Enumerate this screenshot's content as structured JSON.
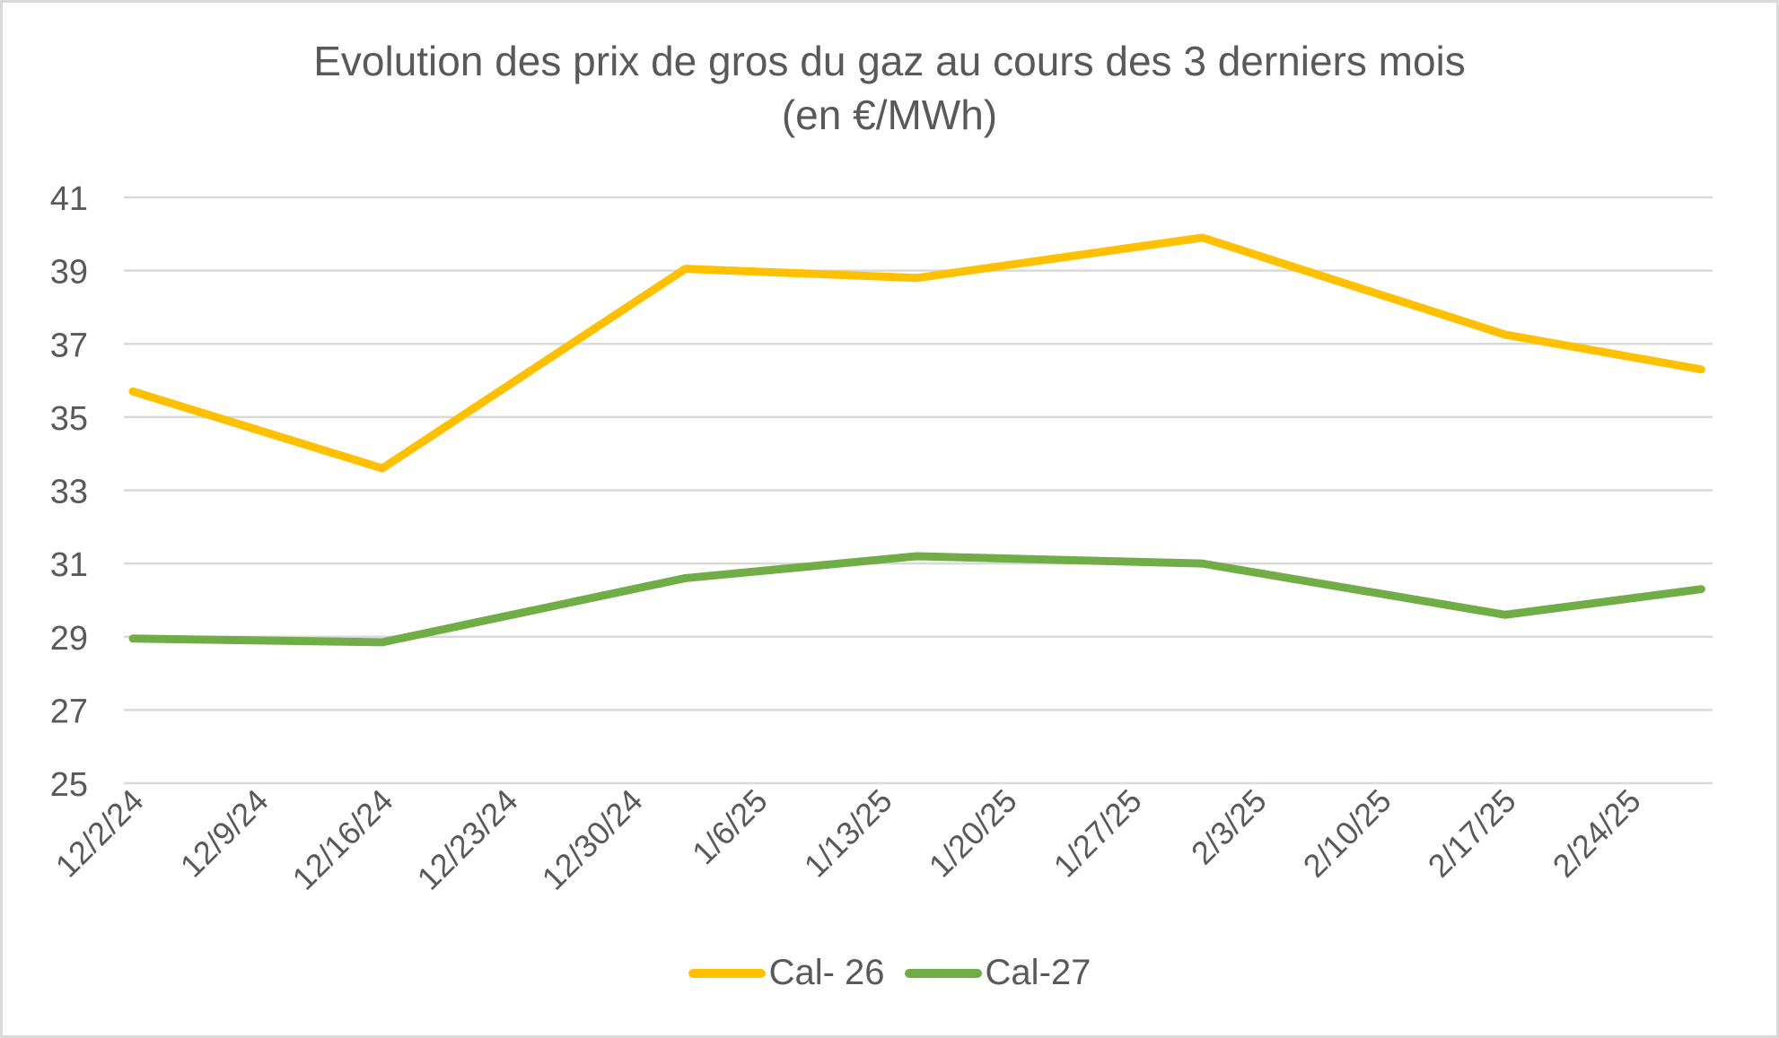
{
  "chart_data": {
    "type": "line",
    "title": "Evolution des prix de gros du gaz au cours des 3 derniers mois",
    "subtitle": "(en €/MWh)",
    "xlabel": "",
    "ylabel": "",
    "ylim": [
      25,
      41
    ],
    "yticks": [
      25,
      27,
      29,
      31,
      33,
      35,
      37,
      39,
      41
    ],
    "x_tick_labels": [
      "12/2/24",
      "12/9/24",
      "12/16/24",
      "12/23/24",
      "12/30/24",
      "1/6/25",
      "1/13/25",
      "1/20/25",
      "1/27/25",
      "2/3/25",
      "2/10/25",
      "2/17/25",
      "2/24/25"
    ],
    "x": [
      "12/2/24",
      "12/16/24",
      "1/2/25",
      "1/15/25",
      "1/31/25",
      "2/17/25",
      "2/28/25"
    ],
    "x_days_offset": [
      0,
      14,
      31,
      44,
      60,
      77,
      88
    ],
    "series": [
      {
        "name": "Cal- 26",
        "color": "#FFC000",
        "values": [
          35.7,
          33.6,
          39.05,
          38.8,
          39.9,
          37.25,
          36.3
        ]
      },
      {
        "name": "Cal-27",
        "color": "#70AD47",
        "values": [
          28.95,
          28.85,
          30.6,
          31.2,
          31.0,
          29.6,
          30.3
        ]
      }
    ],
    "grid": true,
    "legend_position": "bottom"
  },
  "header": {
    "title_line1": "Evolution des prix de gros du gaz au cours des 3 derniers mois",
    "title_line2": "(en €/MWh)"
  },
  "legend": {
    "items": [
      {
        "label": "Cal- 26",
        "color": "#FFC000"
      },
      {
        "label": "Cal-27",
        "color": "#70AD47"
      }
    ]
  }
}
